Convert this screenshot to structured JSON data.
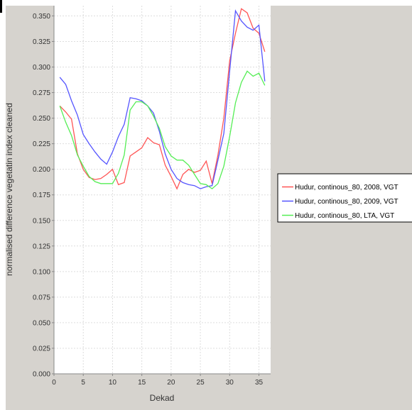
{
  "chart_data": {
    "type": "line",
    "title": "",
    "xlabel": "Dekad",
    "ylabel": "normalised difference vegetatin index cleaned",
    "xlim": [
      0,
      37
    ],
    "ylim": [
      0,
      0.36
    ],
    "xticks": [
      0,
      5,
      10,
      15,
      20,
      25,
      30,
      35
    ],
    "yticks": [
      0.0,
      0.025,
      0.05,
      0.075,
      0.1,
      0.125,
      0.15,
      0.175,
      0.2,
      0.225,
      0.25,
      0.275,
      0.3,
      0.325,
      0.35
    ],
    "grid": true,
    "legend_position": "right",
    "series": [
      {
        "name": "Hudur, continous_80, 2008, VGT",
        "color": "#ff5555",
        "x": [
          1,
          2,
          3,
          4,
          5,
          6,
          7,
          8,
          9,
          10,
          11,
          12,
          13,
          14,
          15,
          16,
          17,
          18,
          19,
          20,
          21,
          22,
          23,
          24,
          25,
          26,
          27,
          28,
          29,
          30,
          31,
          32,
          33,
          34,
          35,
          36
        ],
        "y": [
          0.262,
          0.256,
          0.249,
          0.215,
          0.2,
          0.192,
          0.19,
          0.191,
          0.195,
          0.2,
          0.185,
          0.187,
          0.213,
          0.217,
          0.221,
          0.231,
          0.226,
          0.224,
          0.204,
          0.193,
          0.181,
          0.195,
          0.2,
          0.197,
          0.199,
          0.208,
          0.186,
          0.214,
          0.25,
          0.306,
          0.333,
          0.357,
          0.353,
          0.338,
          0.333,
          0.315
        ]
      },
      {
        "name": "Hudur, continous_80, 2009, VGT",
        "color": "#5555ff",
        "x": [
          1,
          2,
          3,
          4,
          5,
          6,
          7,
          8,
          9,
          10,
          11,
          12,
          13,
          14,
          15,
          16,
          17,
          18,
          19,
          20,
          21,
          22,
          23,
          24,
          25,
          26,
          27,
          28,
          29,
          30,
          31,
          32,
          33,
          34,
          35,
          36
        ],
        "y": [
          0.29,
          0.283,
          0.267,
          0.253,
          0.234,
          0.225,
          0.217,
          0.21,
          0.205,
          0.217,
          0.232,
          0.244,
          0.27,
          0.269,
          0.267,
          0.262,
          0.255,
          0.237,
          0.215,
          0.2,
          0.191,
          0.187,
          0.185,
          0.184,
          0.181,
          0.183,
          0.184,
          0.209,
          0.235,
          0.296,
          0.355,
          0.345,
          0.339,
          0.336,
          0.341,
          0.286
        ]
      },
      {
        "name": "Hudur, continous_80, LTA, VGT",
        "color": "#55ee55",
        "x": [
          1,
          2,
          3,
          4,
          5,
          6,
          7,
          8,
          9,
          10,
          11,
          12,
          13,
          14,
          15,
          16,
          17,
          18,
          19,
          20,
          21,
          22,
          23,
          24,
          25,
          26,
          27,
          28,
          29,
          30,
          31,
          32,
          33,
          34,
          35,
          36
        ],
        "y": [
          0.262,
          0.246,
          0.233,
          0.214,
          0.203,
          0.193,
          0.188,
          0.186,
          0.186,
          0.186,
          0.196,
          0.214,
          0.258,
          0.266,
          0.266,
          0.262,
          0.252,
          0.24,
          0.222,
          0.213,
          0.209,
          0.209,
          0.204,
          0.195,
          0.186,
          0.185,
          0.181,
          0.186,
          0.203,
          0.232,
          0.265,
          0.285,
          0.296,
          0.291,
          0.294,
          0.282
        ]
      }
    ]
  }
}
